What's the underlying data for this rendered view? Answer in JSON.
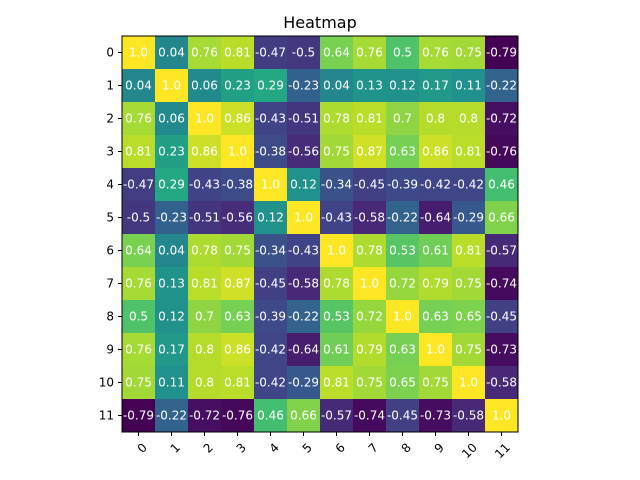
{
  "chart_data": {
    "type": "heatmap",
    "title": "Heatmap",
    "xlabel": "",
    "ylabel": "",
    "x_categories": [
      "0",
      "1",
      "2",
      "3",
      "4",
      "5",
      "6",
      "7",
      "8",
      "9",
      "10",
      "11"
    ],
    "y_categories": [
      "0",
      "1",
      "2",
      "3",
      "4",
      "5",
      "6",
      "7",
      "8",
      "9",
      "10",
      "11"
    ],
    "colormap": "viridis",
    "vmin": -0.79,
    "vmax": 1.0,
    "text_color": "#ffffff",
    "x_tick_rotation_deg": 45,
    "values": [
      [
        1.0,
        0.04,
        0.76,
        0.81,
        -0.47,
        -0.5,
        0.64,
        0.76,
        0.5,
        0.76,
        0.75,
        -0.79
      ],
      [
        0.04,
        1.0,
        0.06,
        0.23,
        0.29,
        -0.23,
        0.04,
        0.13,
        0.12,
        0.17,
        0.11,
        -0.22
      ],
      [
        0.76,
        0.06,
        1.0,
        0.86,
        -0.43,
        -0.51,
        0.78,
        0.81,
        0.7,
        0.8,
        0.8,
        -0.72
      ],
      [
        0.81,
        0.23,
        0.86,
        1.0,
        -0.38,
        -0.56,
        0.75,
        0.87,
        0.63,
        0.86,
        0.81,
        -0.76
      ],
      [
        -0.47,
        0.29,
        -0.43,
        -0.38,
        1.0,
        0.12,
        -0.34,
        -0.45,
        -0.39,
        -0.42,
        -0.42,
        0.46
      ],
      [
        -0.5,
        -0.23,
        -0.51,
        -0.56,
        0.12,
        1.0,
        -0.43,
        -0.58,
        -0.22,
        -0.64,
        -0.29,
        0.66
      ],
      [
        0.64,
        0.04,
        0.78,
        0.75,
        -0.34,
        -0.43,
        1.0,
        0.78,
        0.53,
        0.61,
        0.81,
        -0.57
      ],
      [
        0.76,
        0.13,
        0.81,
        0.87,
        -0.45,
        -0.58,
        0.78,
        1.0,
        0.72,
        0.79,
        0.75,
        -0.74
      ],
      [
        0.5,
        0.12,
        0.7,
        0.63,
        -0.39,
        -0.22,
        0.53,
        0.72,
        1.0,
        0.63,
        0.65,
        -0.45
      ],
      [
        0.76,
        0.17,
        0.8,
        0.86,
        -0.42,
        -0.64,
        0.61,
        0.79,
        0.63,
        1.0,
        0.75,
        -0.73
      ],
      [
        0.75,
        0.11,
        0.8,
        0.81,
        -0.42,
        -0.29,
        0.81,
        0.75,
        0.65,
        0.75,
        1.0,
        -0.58
      ],
      [
        -0.79,
        -0.22,
        -0.72,
        -0.76,
        0.46,
        0.66,
        -0.57,
        -0.74,
        -0.45,
        -0.73,
        -0.58,
        1.0
      ]
    ]
  }
}
